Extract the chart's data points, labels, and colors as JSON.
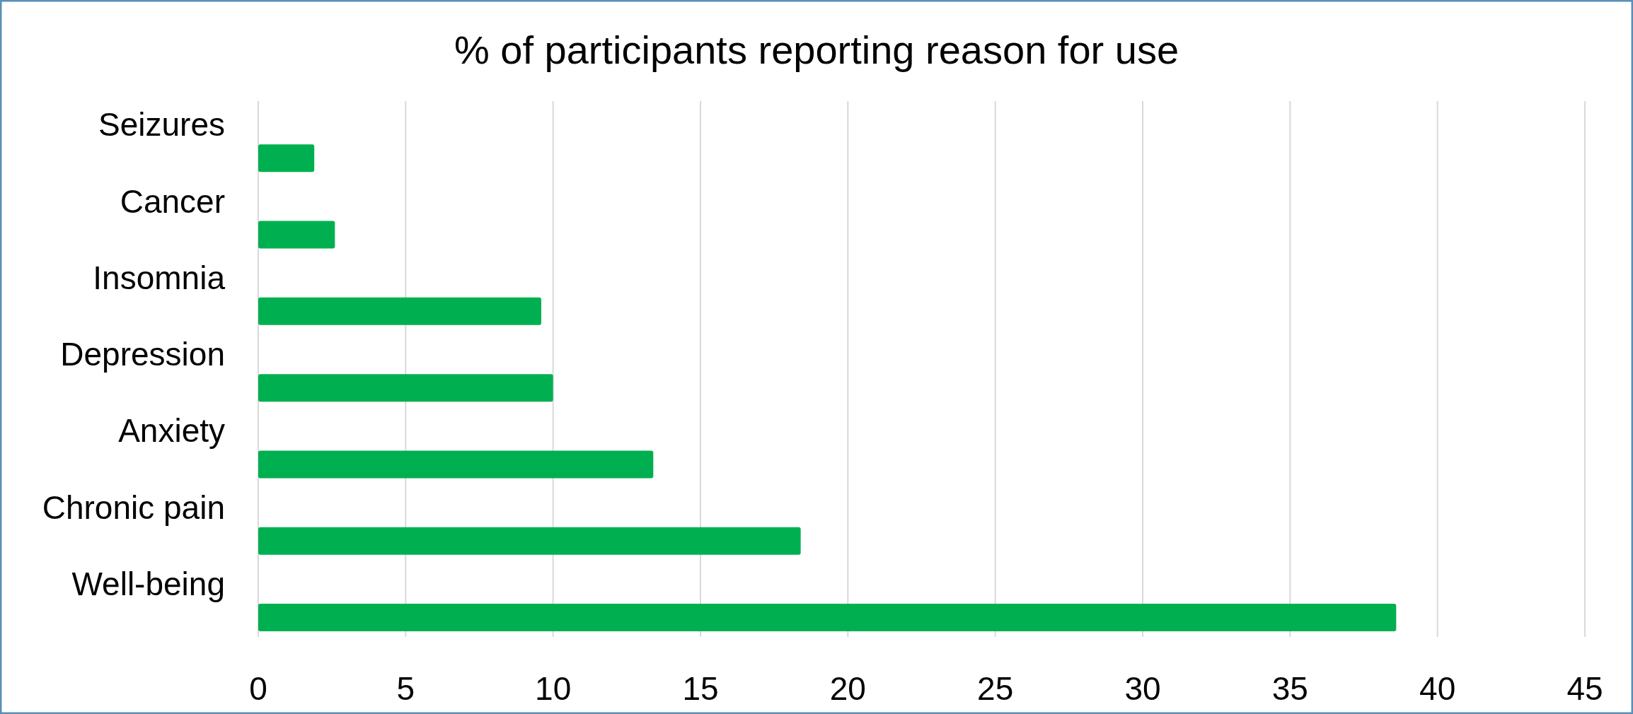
{
  "chart_data": {
    "type": "bar",
    "orientation": "horizontal",
    "title": "% of participants reporting reason for use",
    "categories": [
      "Seizures",
      "Cancer",
      "Insomnia",
      "Depression",
      "Anxiety",
      "Chronic pain",
      "Well-being"
    ],
    "values": [
      1.9,
      2.6,
      9.6,
      10,
      13.4,
      18.4,
      38.6
    ],
    "color": "#00b050",
    "xlim": [
      0,
      45
    ],
    "xticks": [
      0,
      5,
      10,
      15,
      20,
      25,
      30,
      35,
      40,
      45
    ],
    "grid": "x"
  }
}
